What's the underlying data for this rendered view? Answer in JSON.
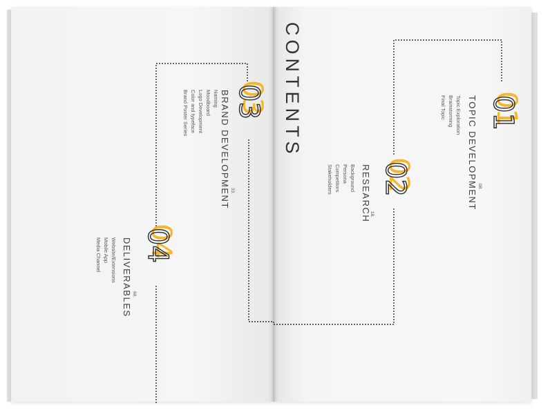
{
  "contents_title": "CONTENTS",
  "accent_color": "#f4b72c",
  "sections": [
    {
      "number": "01",
      "title": "TOPIC DEVELOPMENT",
      "page": "08.",
      "items": [
        "Topic Exploration",
        "Brainstorming",
        "Final Topic"
      ]
    },
    {
      "number": "02",
      "title": "RESEARCH",
      "page": "18.",
      "items": [
        "Background",
        "Persona",
        "Competitors",
        "Stakeholders"
      ]
    },
    {
      "number": "03",
      "title": "BRAND DEVELOPMENT",
      "page": "33.",
      "items": [
        "Naming",
        "Moodboard",
        "Logo Development",
        "Color and typeface",
        "Brand Poster Series"
      ]
    },
    {
      "number": "04",
      "title": "DELIVERABLES",
      "page": "60.",
      "items": [
        "Website/Extensions",
        "Mobile App",
        "Media Channel"
      ]
    }
  ]
}
